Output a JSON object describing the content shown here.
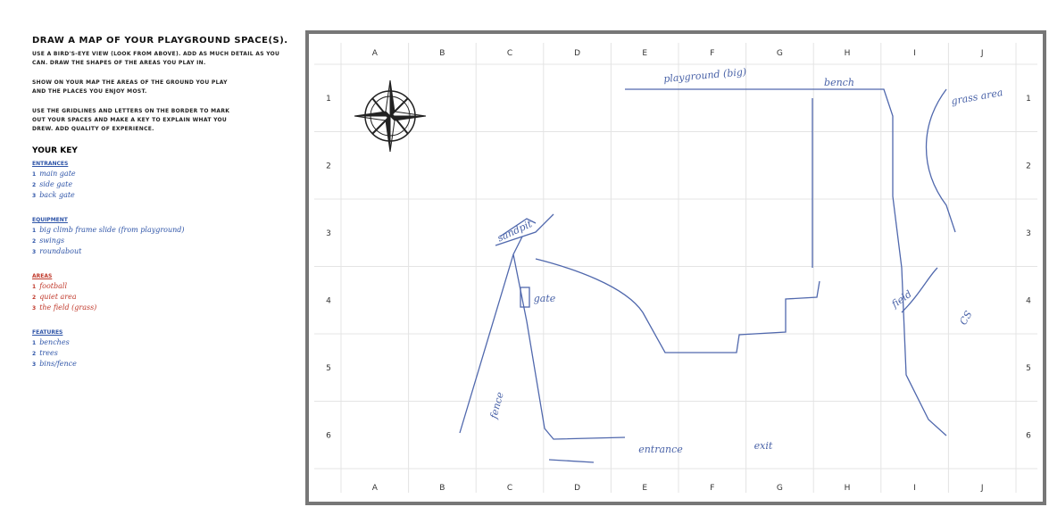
{
  "instructions": {
    "title": "DRAW A MAP OF YOUR PLAYGROUND SPACE(S).",
    "paragraphs": [
      [
        "USE A BIRD'S-EYE VIEW (LOOK FROM ABOVE). ADD AS MUCH DETAIL AS YOU",
        "CAN. DRAW THE SHAPES OF THE AREAS YOU PLAY IN."
      ],
      [
        "SHOW ON YOUR MAP THE AREAS OF THE GROUND YOU PLAY",
        "AND THE PLACES YOU ENJOY MOST."
      ],
      [
        "USE THE GRIDLINES AND LETTERS ON THE BORDER TO MARK",
        "OUT YOUR SPACES AND MAKE A KEY TO EXPLAIN WHAT YOU",
        "DREW. ADD QUALITY OF EXPERIENCE."
      ]
    ]
  },
  "key": {
    "title": "YOUR KEY",
    "groups": [
      {
        "name": "ENTRANCES",
        "color": "#2f55a8",
        "items": [
          {
            "number": "1",
            "text": "main gate"
          },
          {
            "number": "2",
            "text": "side gate"
          },
          {
            "number": "3",
            "text": "back gate"
          }
        ]
      },
      {
        "name": "EQUIPMENT",
        "color": "#2f55a8",
        "items": [
          {
            "number": "1",
            "text": "big climb frame  slide  (from playground)"
          },
          {
            "number": "2",
            "text": "swings"
          },
          {
            "number": "3",
            "text": "roundabout"
          }
        ]
      },
      {
        "name": "AREAS",
        "color": "#c0392b",
        "items": [
          {
            "number": "1",
            "text": "football"
          },
          {
            "number": "2",
            "text": "quiet area"
          },
          {
            "number": "3",
            "text": "the field (grass)"
          }
        ]
      },
      {
        "name": "FEATURES",
        "color": "#2f55a8",
        "items": [
          {
            "number": "1",
            "text": "benches"
          },
          {
            "number": "2",
            "text": "trees"
          },
          {
            "number": "3",
            "text": "bins/fence"
          }
        ]
      }
    ]
  },
  "map": {
    "columns": [
      "A",
      "B",
      "C",
      "D",
      "E",
      "F",
      "G",
      "H",
      "I",
      "J"
    ],
    "rows": [
      "1",
      "2",
      "3",
      "4",
      "5",
      "6"
    ],
    "annotations": [
      "playground (big)",
      "bench",
      "grass area",
      "sandpit",
      "gate",
      "field",
      "CS",
      "fence",
      "entrance",
      "exit"
    ]
  }
}
